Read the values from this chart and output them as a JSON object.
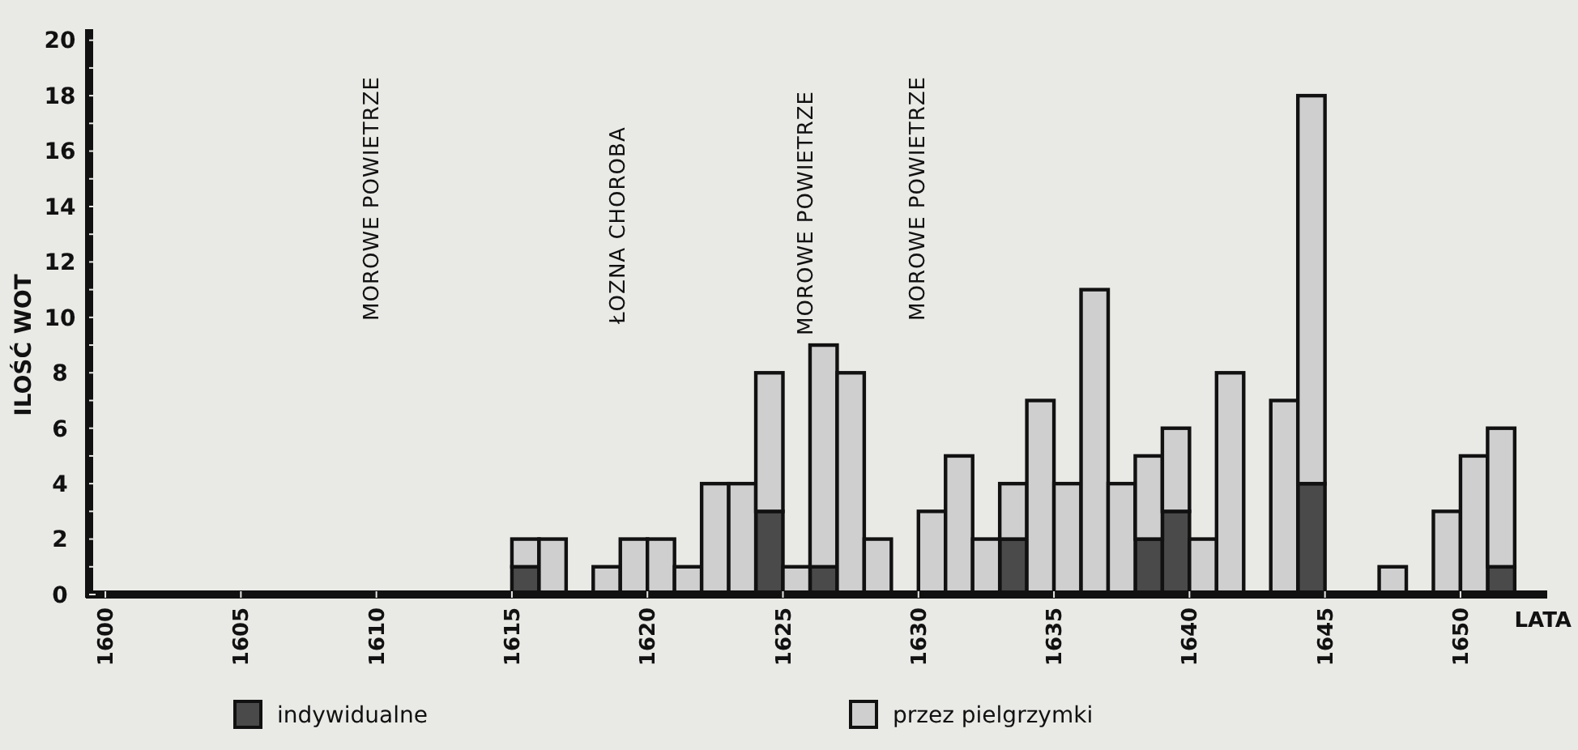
{
  "chart_data": {
    "type": "bar",
    "stacked": true,
    "ylabel": "ILOŚĆ WOT",
    "xlabel": "LATA",
    "x": [
      1615.5,
      1616.5,
      1618.5,
      1619.5,
      1620.5,
      1621.5,
      1622.5,
      1623.5,
      1624.5,
      1625.5,
      1626.5,
      1627.5,
      1628.5,
      1630.5,
      1631.5,
      1632.5,
      1633.5,
      1634.5,
      1635.5,
      1636.5,
      1637.5,
      1638.5,
      1639.5,
      1640.5,
      1641.5,
      1643.5,
      1644.5,
      1647.5,
      1649.5,
      1650.5,
      1651.5
    ],
    "series": [
      {
        "name": "indywidualne",
        "color": "#4a4a4a",
        "values": [
          1,
          0,
          0,
          0,
          0,
          0,
          0,
          0,
          3,
          0,
          1,
          0,
          0,
          0,
          0,
          0,
          2,
          0,
          0,
          0,
          0,
          2,
          3,
          0,
          0,
          0,
          4,
          0,
          0,
          0,
          1
        ]
      },
      {
        "name": "przez pielgrzymki",
        "color": "#cfcfcf",
        "values": [
          1,
          2,
          1,
          2,
          2,
          1,
          4,
          4,
          5,
          1,
          8,
          8,
          2,
          3,
          5,
          2,
          2,
          7,
          4,
          11,
          4,
          3,
          3,
          2,
          8,
          7,
          14,
          1,
          3,
          5,
          5
        ]
      }
    ],
    "xlim": [
      1599.4,
      1653.2
    ],
    "xticks": [
      1600,
      1605,
      1610,
      1615,
      1620,
      1625,
      1630,
      1635,
      1640,
      1645,
      1650
    ],
    "ylim": [
      0,
      20.4
    ],
    "yticks": [
      0,
      {
        "value": 1,
        "label": null
      },
      2,
      {
        "value": 3,
        "label": null
      },
      4,
      {
        "value": 5,
        "label": null
      },
      6,
      {
        "value": 7,
        "label": null
      },
      8,
      {
        "value": 9,
        "label": null
      },
      10,
      {
        "value": 11,
        "label": null
      },
      12,
      {
        "value": 13,
        "label": null
      },
      14,
      {
        "value": 15,
        "label": null
      },
      16,
      {
        "value": 17,
        "label": null
      },
      18,
      {
        "value": 19,
        "label": null
      },
      20
    ],
    "annotations": [
      "MOROWE POWIETRZE",
      "ŁOZNA CHOROBA",
      "MOROWE POWIETRZE",
      "MOROWE POWIETRZE"
    ],
    "legend": "bottom",
    "grid": false
  }
}
